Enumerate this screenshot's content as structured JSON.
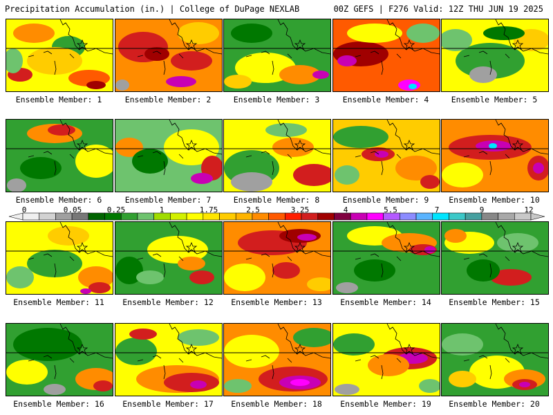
{
  "header": {
    "title_left": "Precipitation Accumulation (in.) | College of DuPage NEXLAB",
    "title_right": "00Z GEFS | F276 Valid: 12Z THU JUN 19 2025"
  },
  "members": [
    {
      "label": "Ensemble Member: 1",
      "bg": "#ffff00",
      "blobs": [
        [
          "#ff8c00",
          40,
          20,
          30,
          14
        ],
        [
          "#d21e1e",
          20,
          80,
          18,
          10
        ],
        [
          "#ff5a00",
          120,
          85,
          30,
          12
        ],
        [
          "#a00000",
          130,
          95,
          14,
          6
        ],
        [
          "#31a031",
          90,
          40,
          24,
          16
        ],
        [
          "#ffcc00",
          70,
          60,
          40,
          20
        ],
        [
          "#6ec36e",
          10,
          60,
          14,
          18
        ]
      ]
    },
    {
      "label": "Ensemble Member: 2",
      "bg": "#ff8c00",
      "blobs": [
        [
          "#d21e1e",
          40,
          40,
          36,
          22
        ],
        [
          "#a00000",
          60,
          50,
          18,
          10
        ],
        [
          "#c800b4",
          95,
          90,
          22,
          8
        ],
        [
          "#ffcc00",
          120,
          20,
          30,
          16
        ],
        [
          "#a0a0a0",
          10,
          95,
          10,
          8
        ],
        [
          "#d21e1e",
          110,
          60,
          30,
          14
        ]
      ]
    },
    {
      "label": "Ensemble Member: 3",
      "bg": "#31a031",
      "blobs": [
        [
          "#ffff00",
          60,
          70,
          44,
          22
        ],
        [
          "#ff8c00",
          110,
          80,
          30,
          14
        ],
        [
          "#c800b4",
          140,
          80,
          12,
          6
        ],
        [
          "#007800",
          40,
          20,
          30,
          14
        ],
        [
          "#ffcc00",
          20,
          90,
          20,
          10
        ]
      ]
    },
    {
      "label": "Ensemble Member: 4",
      "bg": "#ff5a00",
      "blobs": [
        [
          "#a00000",
          40,
          50,
          40,
          18
        ],
        [
          "#c800b4",
          20,
          60,
          14,
          8
        ],
        [
          "#ffff00",
          60,
          20,
          40,
          14
        ],
        [
          "#6ec36e",
          130,
          20,
          24,
          14
        ],
        [
          "#ff00ff",
          110,
          95,
          16,
          8
        ],
        [
          "#00e5ff",
          115,
          97,
          6,
          4
        ]
      ]
    },
    {
      "label": "Ensemble Member: 5",
      "bg": "#ffff00",
      "blobs": [
        [
          "#31a031",
          70,
          60,
          50,
          26
        ],
        [
          "#a0a0a0",
          60,
          80,
          20,
          12
        ],
        [
          "#ffcc00",
          130,
          30,
          26,
          16
        ],
        [
          "#6ec36e",
          20,
          30,
          24,
          16
        ],
        [
          "#007800",
          90,
          20,
          30,
          10
        ]
      ]
    },
    {
      "label": "Ensemble Member: 6",
      "bg": "#31a031",
      "blobs": [
        [
          "#ff8c00",
          70,
          20,
          40,
          14
        ],
        [
          "#d21e1e",
          80,
          15,
          20,
          8
        ],
        [
          "#ffff00",
          130,
          60,
          30,
          24
        ],
        [
          "#a0a0a0",
          15,
          95,
          14,
          10
        ],
        [
          "#007800",
          50,
          70,
          30,
          16
        ]
      ]
    },
    {
      "label": "Ensemble Member: 7",
      "bg": "#6ec36e",
      "blobs": [
        [
          "#ffff00",
          110,
          40,
          40,
          26
        ],
        [
          "#d21e1e",
          140,
          70,
          16,
          18
        ],
        [
          "#c800b4",
          125,
          85,
          16,
          8
        ],
        [
          "#ff8c00",
          20,
          40,
          20,
          14
        ],
        [
          "#007800",
          50,
          60,
          26,
          18
        ]
      ]
    },
    {
      "label": "Ensemble Member: 8",
      "bg": "#ffff00",
      "blobs": [
        [
          "#31a031",
          40,
          70,
          40,
          26
        ],
        [
          "#a0a0a0",
          40,
          90,
          30,
          14
        ],
        [
          "#d21e1e",
          130,
          80,
          30,
          16
        ],
        [
          "#ff8c00",
          100,
          40,
          30,
          14
        ],
        [
          "#6ec36e",
          90,
          15,
          30,
          10
        ]
      ]
    },
    {
      "label": "Ensemble Member: 9",
      "bg": "#ffcc00",
      "blobs": [
        [
          "#31a031",
          40,
          25,
          40,
          16
        ],
        [
          "#d21e1e",
          65,
          50,
          24,
          10
        ],
        [
          "#c800b4",
          70,
          50,
          10,
          5
        ],
        [
          "#ff8c00",
          120,
          70,
          30,
          18
        ],
        [
          "#d21e1e",
          140,
          90,
          14,
          10
        ],
        [
          "#6ec36e",
          20,
          80,
          18,
          14
        ]
      ]
    },
    {
      "label": "Ensemble Member: 10",
      "bg": "#ff8c00",
      "blobs": [
        [
          "#d21e1e",
          70,
          40,
          60,
          18
        ],
        [
          "#c800b4",
          75,
          38,
          26,
          8
        ],
        [
          "#00e5ff",
          74,
          38,
          6,
          4
        ],
        [
          "#ffff00",
          30,
          80,
          30,
          18
        ],
        [
          "#d21e1e",
          140,
          70,
          16,
          18
        ],
        [
          "#c800b4",
          140,
          70,
          8,
          8
        ]
      ]
    },
    {
      "label": "Ensemble Member: 11",
      "bg": "#ffff00",
      "blobs": [
        [
          "#31a031",
          70,
          60,
          40,
          20
        ],
        [
          "#6ec36e",
          20,
          80,
          20,
          16
        ],
        [
          "#ff8c00",
          130,
          80,
          26,
          16
        ],
        [
          "#d21e1e",
          135,
          95,
          16,
          8
        ],
        [
          "#c800b4",
          115,
          100,
          8,
          4
        ],
        [
          "#ffcc00",
          90,
          20,
          30,
          14
        ]
      ]
    },
    {
      "label": "Ensemble Member: 12",
      "bg": "#31a031",
      "blobs": [
        [
          "#ffff00",
          90,
          40,
          44,
          20
        ],
        [
          "#ff8c00",
          110,
          60,
          20,
          10
        ],
        [
          "#d21e1e",
          125,
          80,
          18,
          10
        ],
        [
          "#007800",
          20,
          70,
          20,
          20
        ],
        [
          "#6ec36e",
          50,
          80,
          20,
          10
        ]
      ]
    },
    {
      "label": "Ensemble Member: 13",
      "bg": "#ff8c00",
      "blobs": [
        [
          "#d21e1e",
          70,
          30,
          50,
          18
        ],
        [
          "#a00000",
          110,
          20,
          30,
          10
        ],
        [
          "#c800b4",
          120,
          22,
          14,
          5
        ],
        [
          "#ffff00",
          30,
          80,
          30,
          20
        ],
        [
          "#d21e1e",
          90,
          70,
          20,
          12
        ],
        [
          "#ffcc00",
          140,
          90,
          20,
          10
        ]
      ]
    },
    {
      "label": "Ensemble Member: 14",
      "bg": "#31a031",
      "blobs": [
        [
          "#ffff00",
          60,
          20,
          40,
          14
        ],
        [
          "#ff8c00",
          110,
          30,
          40,
          14
        ],
        [
          "#d21e1e",
          130,
          40,
          20,
          8
        ],
        [
          "#c800b4",
          140,
          40,
          8,
          5
        ],
        [
          "#a0a0a0",
          20,
          95,
          16,
          8
        ],
        [
          "#007800",
          60,
          70,
          30,
          16
        ]
      ]
    },
    {
      "label": "Ensemble Member: 15",
      "bg": "#31a031",
      "blobs": [
        [
          "#ffff00",
          40,
          30,
          36,
          16
        ],
        [
          "#ff8c00",
          20,
          20,
          16,
          10
        ],
        [
          "#d21e1e",
          100,
          80,
          30,
          12
        ],
        [
          "#6ec36e",
          110,
          30,
          30,
          14
        ],
        [
          "#007800",
          60,
          70,
          24,
          16
        ]
      ]
    },
    {
      "label": "Ensemble Member: 16",
      "bg": "#31a031",
      "blobs": [
        [
          "#007800",
          60,
          30,
          50,
          24
        ],
        [
          "#ffff00",
          30,
          70,
          30,
          18
        ],
        [
          "#ff8c00",
          130,
          80,
          30,
          16
        ],
        [
          "#d21e1e",
          140,
          90,
          14,
          8
        ],
        [
          "#a0a0a0",
          70,
          95,
          16,
          8
        ]
      ]
    },
    {
      "label": "Ensemble Member: 17",
      "bg": "#ffff00",
      "blobs": [
        [
          "#ff8c00",
          90,
          80,
          60,
          20
        ],
        [
          "#d21e1e",
          110,
          85,
          40,
          14
        ],
        [
          "#c800b4",
          120,
          88,
          12,
          6
        ],
        [
          "#31a031",
          30,
          40,
          30,
          20
        ],
        [
          "#d21e1e",
          40,
          15,
          20,
          8
        ],
        [
          "#6ec36e",
          120,
          20,
          30,
          12
        ]
      ]
    },
    {
      "label": "Ensemble Member: 18",
      "bg": "#ff8c00",
      "blobs": [
        [
          "#ffff00",
          40,
          40,
          40,
          24
        ],
        [
          "#d21e1e",
          100,
          80,
          50,
          18
        ],
        [
          "#c800b4",
          110,
          85,
          30,
          10
        ],
        [
          "#ff00ff",
          110,
          85,
          14,
          5
        ],
        [
          "#31a031",
          130,
          20,
          30,
          14
        ],
        [
          "#6ec36e",
          20,
          90,
          20,
          10
        ]
      ]
    },
    {
      "label": "Ensemble Member: 19",
      "bg": "#ffff00",
      "blobs": [
        [
          "#d21e1e",
          110,
          50,
          40,
          16
        ],
        [
          "#c800b4",
          115,
          50,
          22,
          8
        ],
        [
          "#ff8c00",
          80,
          60,
          30,
          16
        ],
        [
          "#31a031",
          30,
          30,
          30,
          16
        ],
        [
          "#a0a0a0",
          20,
          95,
          18,
          8
        ],
        [
          "#6ec36e",
          140,
          90,
          16,
          10
        ]
      ]
    },
    {
      "label": "Ensemble Member: 20",
      "bg": "#31a031",
      "blobs": [
        [
          "#ffff00",
          80,
          70,
          40,
          24
        ],
        [
          "#ff8c00",
          120,
          80,
          30,
          14
        ],
        [
          "#d21e1e",
          120,
          88,
          18,
          8
        ],
        [
          "#c800b4",
          120,
          88,
          8,
          4
        ],
        [
          "#6ec36e",
          30,
          30,
          30,
          16
        ],
        [
          "#ffcc00",
          30,
          80,
          20,
          12
        ]
      ]
    }
  ],
  "colorbar": {
    "labels": [
      "0",
      "0.05",
      "0.25",
      "1",
      "1.75",
      "2.5",
      "3.25",
      "4",
      "5.5",
      "7",
      "9",
      "12"
    ],
    "colors": [
      "#f0f0f0",
      "#d2d2d2",
      "#a0a0a0",
      "#787878",
      "#006400",
      "#007800",
      "#31a031",
      "#6ec36e",
      "#a0dc00",
      "#d2f000",
      "#ffff00",
      "#ffe600",
      "#ffcc00",
      "#ffb400",
      "#ff8c00",
      "#ff5a00",
      "#ff1e00",
      "#d21e1e",
      "#a00000",
      "#800040",
      "#c800b4",
      "#ff00ff",
      "#b45aff",
      "#8c8cff",
      "#5ab4ff",
      "#00e5ff",
      "#3cc8c8",
      "#46a0a0",
      "#888888",
      "#a8a8a8",
      "#c8c8c8"
    ]
  }
}
